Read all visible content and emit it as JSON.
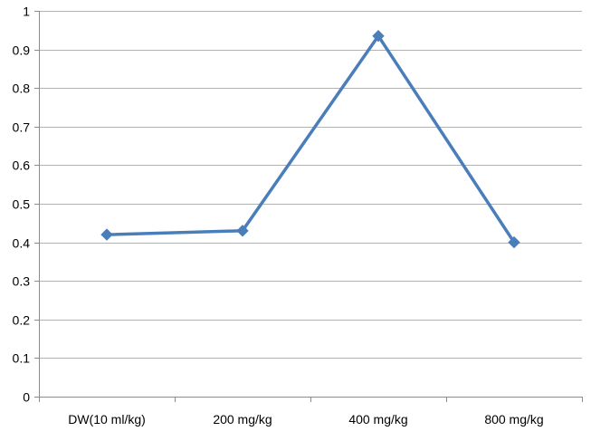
{
  "chart_data": {
    "type": "line",
    "title": "",
    "xlabel": "",
    "ylabel": "",
    "categories": [
      "DW(10 ml/kg)",
      "200 mg/kg",
      "400 mg/kg",
      "800 mg/kg"
    ],
    "series": [
      {
        "values": [
          0.42,
          0.43,
          0.935,
          0.4
        ],
        "color": "#4a7ebb",
        "marker": "diamond"
      }
    ],
    "ylim": [
      0,
      1
    ],
    "yticks": [
      "0",
      "0.1",
      "0.2",
      "0.3",
      "0.4",
      "0.5",
      "0.6",
      "0.7",
      "0.8",
      "0.9",
      "1"
    ],
    "grid": true,
    "legend": "none"
  }
}
